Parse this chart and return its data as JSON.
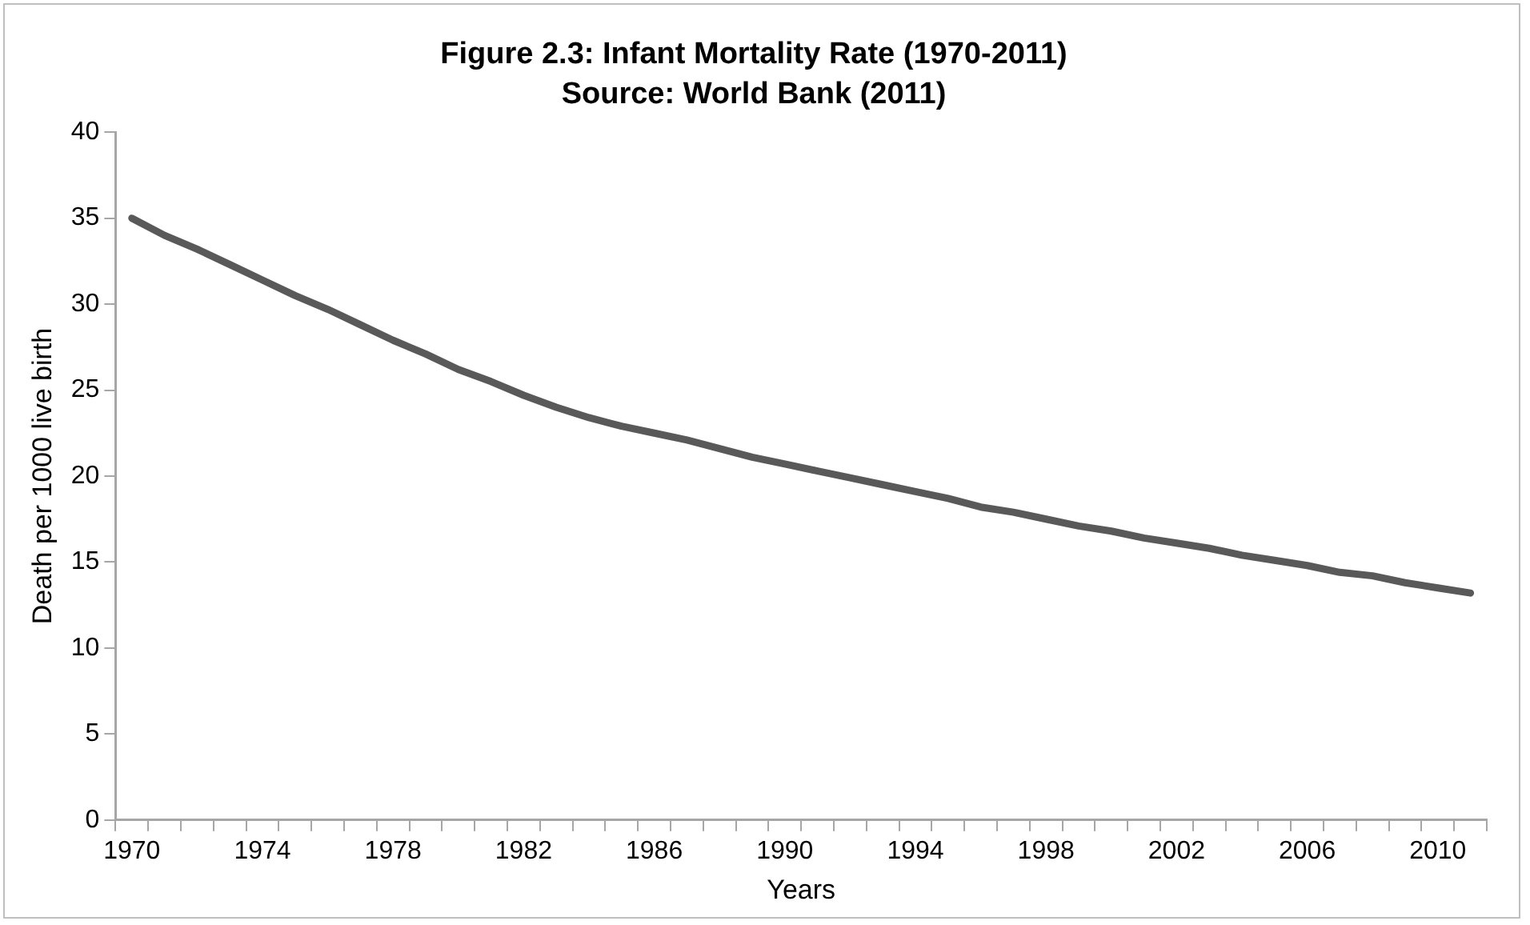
{
  "chart_data": {
    "type": "line",
    "title": "Figure 2.3: Infant Mortality Rate (1970-2011)",
    "subtitle": "Source: World Bank (2011)",
    "xlabel": "Years",
    "ylabel": "Death per 1000 live birth",
    "categories": [
      "1970",
      null,
      null,
      null,
      "1974",
      null,
      null,
      null,
      "1978",
      null,
      null,
      null,
      "1982",
      null,
      null,
      null,
      "1986",
      null,
      null,
      null,
      "1990",
      null,
      null,
      null,
      "1994",
      null,
      null,
      null,
      "1998",
      null,
      null,
      null,
      "2002",
      null,
      null,
      null,
      "2006",
      null,
      null,
      null,
      "2010",
      null
    ],
    "series": [
      {
        "color": "#595959",
        "values": [
          35,
          34,
          33.2,
          32.3,
          31.4,
          30.5,
          29.7,
          28.8,
          27.9,
          27.1,
          26.2,
          25.5,
          24.7,
          24,
          23.4,
          22.9,
          22.5,
          22.1,
          21.6,
          21.1,
          20.7,
          20.3,
          19.9,
          19.5,
          19.1,
          18.7,
          18.2,
          17.9,
          17.5,
          17.1,
          16.8,
          16.4,
          16.1,
          15.8,
          15.4,
          15.1,
          14.8,
          14.4,
          14.2,
          13.8,
          13.5,
          13.2
        ]
      }
    ],
    "ylim": [
      0,
      40
    ],
    "yticks": [
      0,
      5,
      10,
      15,
      20,
      25,
      30,
      35,
      40
    ],
    "grid": false,
    "legend": false,
    "marker": "none",
    "line_style": "solid"
  }
}
